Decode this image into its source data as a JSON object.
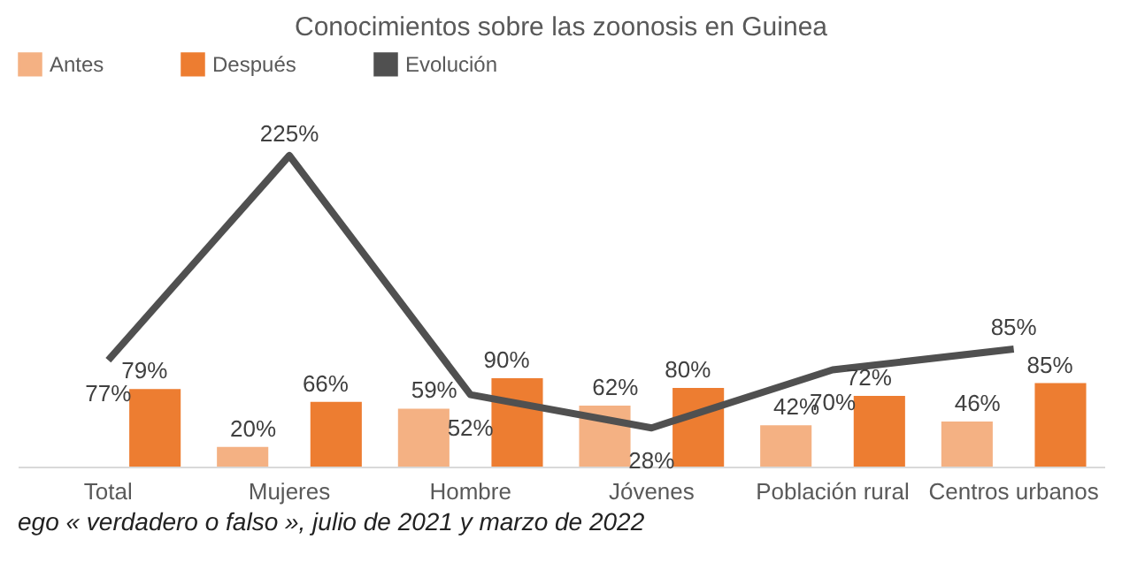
{
  "chart_data": {
    "type": "bar",
    "title": "Conocimientos sobre las zoonosis en Guinea",
    "categories": [
      "Total",
      "Mujeres",
      "Hombre",
      "Jóvenes",
      "Población rural",
      "Centros urbanos"
    ],
    "series": [
      {
        "name": "Antes",
        "color": "#f4b183",
        "values": [
          null,
          20,
          59,
          62,
          42,
          46
        ],
        "value_labels": [
          null,
          "20%",
          "59%",
          "62%",
          "42%",
          "46%"
        ]
      },
      {
        "name": "Después",
        "color": "#ed7d31",
        "values": [
          79,
          66,
          90,
          80,
          72,
          85
        ],
        "value_labels": [
          "79%",
          "66%",
          "90%",
          "80%",
          "72%",
          "85%"
        ]
      },
      {
        "name": "Evolución",
        "type": "line",
        "axis": "y2",
        "color": "#505050",
        "values": [
          77,
          225,
          52,
          28,
          70,
          85
        ],
        "value_labels": [
          "77%",
          "225%",
          "52%",
          "28%",
          "70%",
          "85%"
        ]
      }
    ],
    "legend": "top",
    "annotations": [
      "ego « verdadero o falso », julio de 2021 y marzo de 2022"
    ]
  }
}
